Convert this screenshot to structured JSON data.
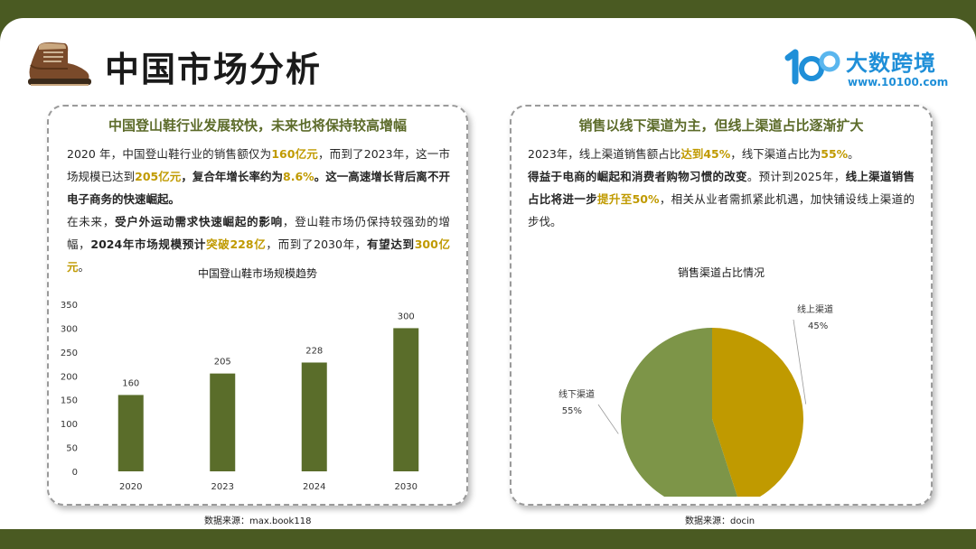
{
  "header": {
    "title": "中国市场分析",
    "logo_name": "大数跨境",
    "logo_url": "www.10100.com"
  },
  "left": {
    "title": "中国登山鞋行业发展较快，未来也将保持较高增幅",
    "p1": {
      "t1": "2020  年，中国登山鞋行业的销售额仅为",
      "h1": "160亿元",
      "t2": "，而到了2023年，这一市场规模已达到",
      "h2": "205亿元",
      "b1": "，复合年增长率约为",
      "h3": "8.6%",
      "b2": "。这一高速增长背后离不开电子商务的快速崛起。"
    },
    "p2": {
      "t1": "在未来，",
      "b1": "受户外运动需求快速崛起的影响",
      "t2": "，登山鞋市场仍保持较强劲的增幅，",
      "b2": "2024年市场规模预计",
      "h1": "突破228亿",
      "t3": "，而到了2030年，",
      "b3": "有望达到",
      "h2": "300亿元",
      "t4": "。"
    },
    "source": "数据来源：max.book118"
  },
  "right": {
    "title": "销售以线下渠道为主，但线上渠道占比逐渐扩大",
    "p1": {
      "t1": "2023年，线上渠道销售额占比",
      "h1": "达到45%",
      "t2": "，线下渠道占比为",
      "h2": "55%",
      "t3": "。"
    },
    "p2": {
      "b1": "得益于电商的崛起和消费者购物习惯的改变",
      "t1": "。预计到2025年，",
      "b2": "线上渠道销售占比将进一步",
      "h1": "提升至50%",
      "t2": "，相关从业者需抓紧此机遇，加快铺设线上渠道的步伐。"
    },
    "source": "数据来源：docin"
  },
  "colors": {
    "bar": "#5a6d2a",
    "online": "#c09a00",
    "offline": "#7d9548",
    "accent_text": "#c09a00",
    "title_green": "#5c6b2a",
    "frame": "#4a5a22"
  },
  "chart_data": [
    {
      "type": "bar",
      "title": "中国登山鞋市场规模趋势",
      "categories": [
        "2020",
        "2023",
        "2024",
        "2030"
      ],
      "values": [
        160,
        205,
        228,
        300
      ],
      "ylim": [
        0,
        350
      ],
      "yticks": [
        0,
        50,
        100,
        150,
        200,
        250,
        300,
        350
      ],
      "grid": false,
      "data_labels": true
    },
    {
      "type": "pie",
      "title": "销售渠道占比情况",
      "slices": [
        {
          "label": "线上渠道",
          "value": 45,
          "value_label": "45%",
          "color": "#c09a00"
        },
        {
          "label": "线下渠道",
          "value": 55,
          "value_label": "55%",
          "color": "#7d9548"
        }
      ]
    }
  ]
}
